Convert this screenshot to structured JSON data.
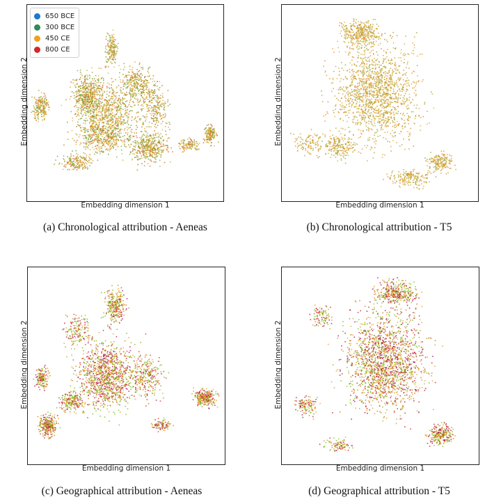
{
  "chart_data": [
    {
      "id": "a",
      "type": "scatter",
      "caption": "(a) Chronological attribution - Aeneas",
      "xlabel": "Embedding dimension 1",
      "ylabel": "Embedding dimension 2",
      "legend": {
        "placement": "top-left",
        "entries": [
          {
            "label": "650 BCE",
            "color": "#1f77d4"
          },
          {
            "label": "300 BCE",
            "color": "#2e8b57"
          },
          {
            "label": "450 CE",
            "color": "#f0a020"
          },
          {
            "label": "800 CE",
            "color": "#d62728"
          }
        ]
      },
      "grid": false,
      "palette": [
        "#8aa432",
        "#c7a82e",
        "#e9a324",
        "#d96a28",
        "#6b9b3a",
        "#e0b040"
      ]
    },
    {
      "id": "b",
      "type": "scatter",
      "caption": "(b) Chronological attribution - T5",
      "xlabel": "Embedding dimension 1",
      "ylabel": "Embedding dimension 2",
      "grid": false,
      "palette": [
        "#c6a231",
        "#e3a527",
        "#9aa537",
        "#d4b03a",
        "#e88a2a",
        "#b3a43a"
      ]
    },
    {
      "id": "c",
      "type": "scatter",
      "caption": "(c) Geographical attribution - Aeneas",
      "xlabel": "Embedding dimension 1",
      "ylabel": "Embedding dimension 2",
      "grid": false,
      "palette": [
        "#d83a1f",
        "#e9a21f",
        "#93b51c",
        "#b3125a",
        "#c8861e",
        "#6fc21d"
      ]
    },
    {
      "id": "d",
      "type": "scatter",
      "caption": "(d) Geographical attribution - T5",
      "xlabel": "Embedding dimension 1",
      "ylabel": "Embedding dimension 2",
      "grid": false,
      "palette": [
        "#c9202a",
        "#e7a41e",
        "#a9b420",
        "#a8124f",
        "#d6741f",
        "#72c424"
      ]
    }
  ]
}
